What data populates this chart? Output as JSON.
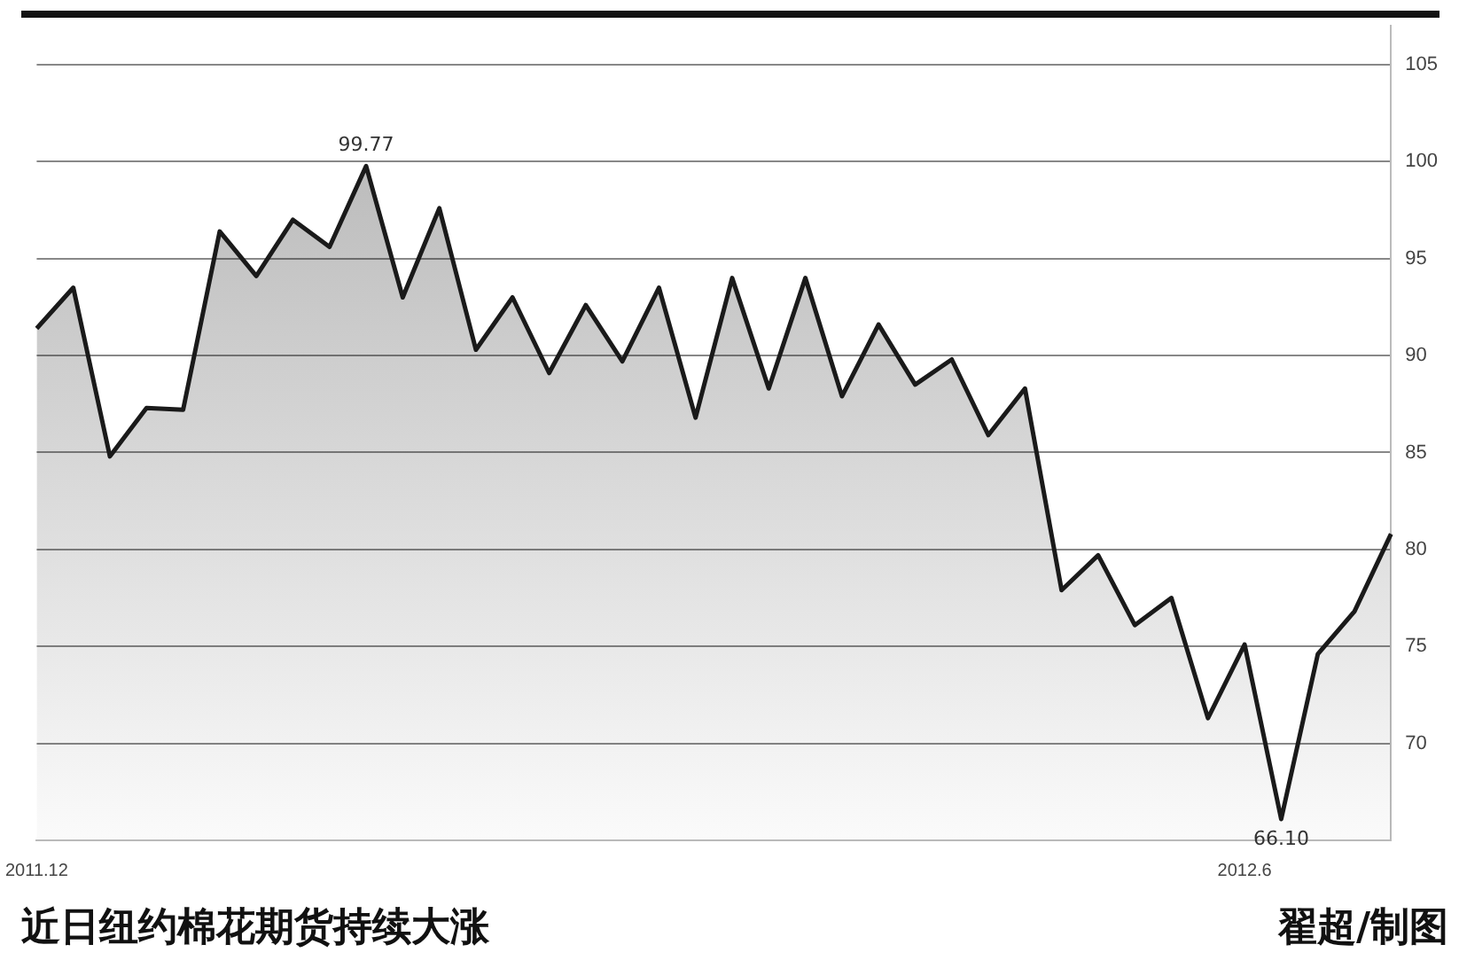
{
  "chart_data": {
    "type": "area",
    "title": "近日纽约棉花期货持续大涨",
    "annotations": [
      "翟超/制图"
    ],
    "categories": [
      "2011.12",
      null,
      null,
      null,
      null,
      null,
      null,
      null,
      null,
      null,
      null,
      null,
      null,
      null,
      null,
      null,
      null,
      null,
      null,
      null,
      null,
      null,
      null,
      null,
      null,
      null,
      null,
      null,
      null,
      null,
      null,
      null,
      null,
      "2012.6",
      null,
      null,
      null,
      null
    ],
    "series": [
      {
        "color": "#1a1a1a",
        "values": [
          91.4,
          93.5,
          84.8,
          87.3,
          87.2,
          96.4,
          94.1,
          97.0,
          95.6,
          99.77,
          93.0,
          97.6,
          90.3,
          93.0,
          89.1,
          92.6,
          89.7,
          93.5,
          86.8,
          94.0,
          88.3,
          94.0,
          87.9,
          91.6,
          88.5,
          89.8,
          85.9,
          88.3,
          77.9,
          79.7,
          76.1,
          77.5,
          71.3,
          75.1,
          66.1,
          74.6,
          76.8,
          80.8
        ],
        "value_labels": [
          null,
          null,
          null,
          null,
          null,
          null,
          null,
          null,
          null,
          "99.77",
          null,
          null,
          null,
          null,
          null,
          null,
          null,
          null,
          null,
          null,
          null,
          null,
          null,
          null,
          null,
          null,
          null,
          null,
          null,
          null,
          null,
          null,
          null,
          null,
          "66.10",
          null,
          null,
          null
        ]
      }
    ],
    "ylim": [
      65,
      107
    ],
    "yticks": [
      70,
      75,
      80,
      85,
      90,
      95,
      100,
      105
    ],
    "grid": "y",
    "line_style": "solid",
    "marker": "none",
    "legend": false
  }
}
